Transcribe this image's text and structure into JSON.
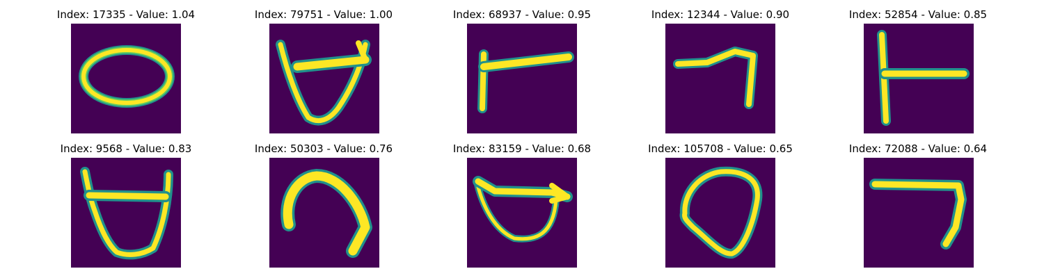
{
  "colors": {
    "background": "#440154",
    "stroke_core": "#fde725",
    "stroke_edge": "#21918c",
    "stroke_mid": "#5ec962"
  },
  "panels": [
    {
      "title": "Index: 17335 - Value: 1.04",
      "glyph": "oval-icon"
    },
    {
      "title": "Index: 79751 - Value: 1.00",
      "glyph": "open-cup-icon"
    },
    {
      "title": "Index: 68937 - Value: 0.95",
      "glyph": "corner-icon"
    },
    {
      "title": "Index: 12344 - Value: 0.90",
      "glyph": "hook-icon"
    },
    {
      "title": "Index: 52854 - Value: 0.85",
      "glyph": "t-shape-icon"
    },
    {
      "title": "Index: 9568 - Value: 0.83",
      "glyph": "open-cup-icon"
    },
    {
      "title": "Index: 50303 - Value: 0.76",
      "glyph": "arch-icon"
    },
    {
      "title": "Index: 83159 - Value: 0.68",
      "glyph": "bowl-icon"
    },
    {
      "title": "Index: 105708 - Value: 0.65",
      "glyph": "loop-icon"
    },
    {
      "title": "Index: 72088 - Value: 0.64",
      "glyph": "hook-icon"
    }
  ]
}
